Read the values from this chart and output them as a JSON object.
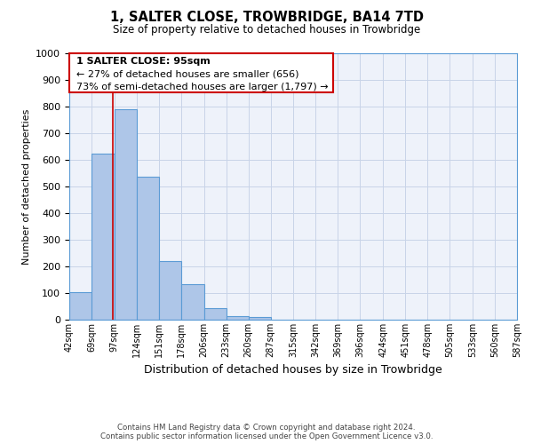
{
  "title": "1, SALTER CLOSE, TROWBRIDGE, BA14 7TD",
  "subtitle": "Size of property relative to detached houses in Trowbridge",
  "xlabel": "Distribution of detached houses by size in Trowbridge",
  "ylabel": "Number of detached properties",
  "bar_values": [
    103,
    622,
    790,
    537,
    220,
    133,
    45,
    15,
    10
  ],
  "bin_edges": [
    42,
    69,
    97,
    124,
    151,
    178,
    206,
    233,
    260,
    287,
    315,
    342,
    369,
    396,
    424,
    451,
    478,
    505,
    533,
    560,
    587
  ],
  "tick_labels": [
    "42sqm",
    "69sqm",
    "97sqm",
    "124sqm",
    "151sqm",
    "178sqm",
    "206sqm",
    "233sqm",
    "260sqm",
    "287sqm",
    "315sqm",
    "342sqm",
    "369sqm",
    "396sqm",
    "424sqm",
    "451sqm",
    "478sqm",
    "505sqm",
    "533sqm",
    "560sqm",
    "587sqm"
  ],
  "bar_color": "#aec6e8",
  "bar_edge_color": "#5b9bd5",
  "property_line_x": 95,
  "property_line_color": "#cc0000",
  "ylim": [
    0,
    1000
  ],
  "yticks": [
    0,
    100,
    200,
    300,
    400,
    500,
    600,
    700,
    800,
    900,
    1000
  ],
  "ann_line1": "1 SALTER CLOSE: 95sqm",
  "ann_line2": "← 27% of detached houses are smaller (656)",
  "ann_line3": "73% of semi-detached houses are larger (1,797) →",
  "footer_line1": "Contains HM Land Registry data © Crown copyright and database right 2024.",
  "footer_line2": "Contains public sector information licensed under the Open Government Licence v3.0.",
  "bg_color": "#eef2fa",
  "grid_color": "#c8d4e8"
}
